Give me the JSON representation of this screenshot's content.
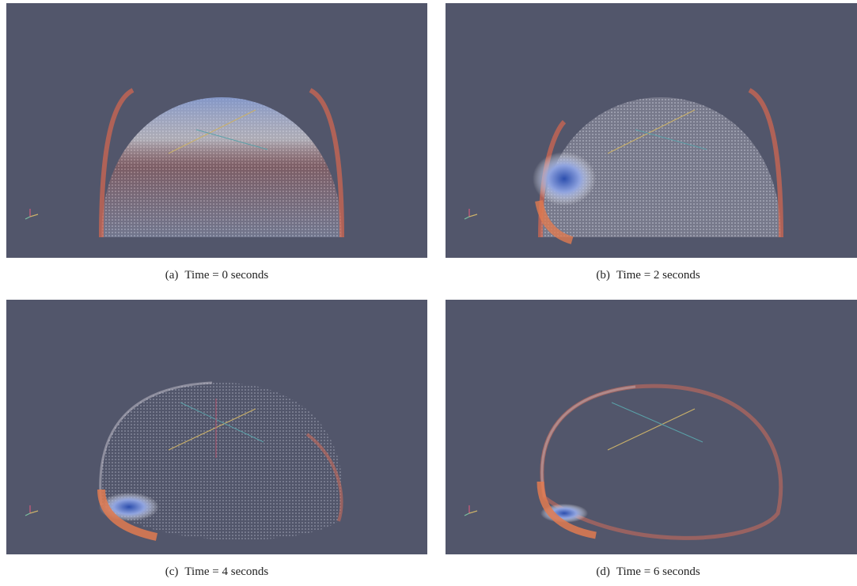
{
  "panels": [
    {
      "label": "(a)",
      "caption": "Time = 0 seconds"
    },
    {
      "label": "(b)",
      "caption": "Time = 2 seconds"
    },
    {
      "label": "(c)",
      "caption": "Time = 4 seconds"
    },
    {
      "label": "(d)",
      "caption": "Time = 6 seconds"
    }
  ]
}
